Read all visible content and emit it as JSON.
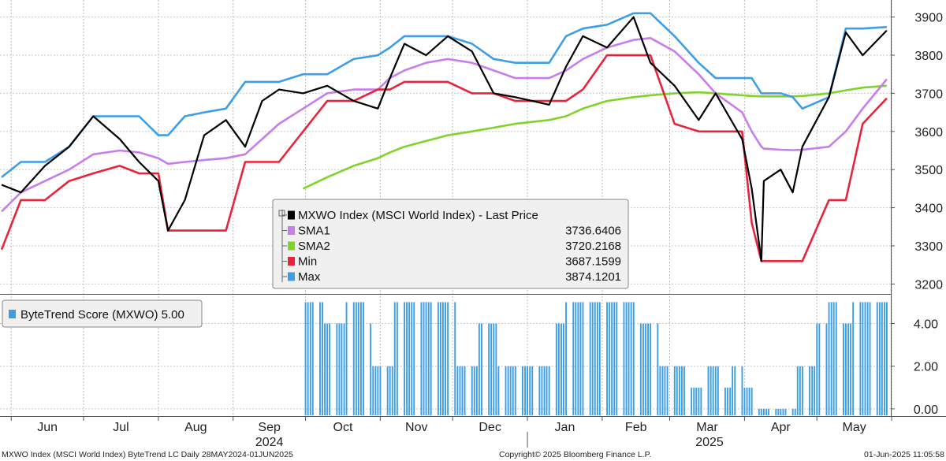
{
  "chart_data": [
    {
      "type": "line",
      "panel": "price",
      "x": [
        "2024-05-28",
        "2024-06-05",
        "2024-06-15",
        "2024-06-25",
        "2024-07-05",
        "2024-07-16",
        "2024-07-24",
        "2024-08-01",
        "2024-08-05",
        "2024-08-12",
        "2024-08-20",
        "2024-08-29",
        "2024-09-06",
        "2024-09-13",
        "2024-09-20",
        "2024-09-30",
        "2024-10-10",
        "2024-10-21",
        "2024-10-31",
        "2024-11-05",
        "2024-11-11",
        "2024-11-20",
        "2024-11-29",
        "2024-12-09",
        "2024-12-18",
        "2024-12-27",
        "2025-01-10",
        "2025-01-17",
        "2025-01-24",
        "2025-02-03",
        "2025-02-14",
        "2025-02-21",
        "2025-03-03",
        "2025-03-13",
        "2025-03-20",
        "2025-03-31",
        "2025-04-04",
        "2025-04-08",
        "2025-04-09",
        "2025-04-16",
        "2025-04-21",
        "2025-04-25",
        "2025-05-06",
        "2025-05-13",
        "2025-05-20",
        "2025-05-30"
      ],
      "series": [
        {
          "name": "MXWO Index (MSCI World Index) - Last Price",
          "values": [
            3460,
            3440,
            3510,
            3560,
            3640,
            3580,
            3520,
            3470,
            3340,
            3420,
            3590,
            3630,
            3560,
            3680,
            3710,
            3700,
            3720,
            3680,
            3660,
            3740,
            3830,
            3800,
            3850,
            3810,
            3700,
            3690,
            3670,
            3770,
            3850,
            3820,
            3900,
            3780,
            3720,
            3630,
            3700,
            3580,
            3450,
            3260,
            3470,
            3500,
            3440,
            3560,
            3690,
            3860,
            3800,
            3865
          ],
          "color": "#000000"
        },
        {
          "name": "SMA1",
          "values": [
            3390,
            3440,
            3470,
            3500,
            3540,
            3550,
            3545,
            3530,
            3515,
            3520,
            3525,
            3530,
            3540,
            3580,
            3620,
            3660,
            3700,
            3710,
            3710,
            3740,
            3760,
            3780,
            3790,
            3780,
            3760,
            3740,
            3740,
            3760,
            3790,
            3820,
            3840,
            3845,
            3810,
            3750,
            3700,
            3650,
            3600,
            3560,
            3555,
            3552,
            3551,
            3552,
            3560,
            3600,
            3660,
            3737
          ],
          "color": "#c77dec"
        },
        {
          "name": "SMA2",
          "values": [
            null,
            null,
            null,
            null,
            null,
            null,
            null,
            null,
            null,
            null,
            null,
            null,
            null,
            null,
            null,
            3450,
            3480,
            3510,
            3530,
            3545,
            3560,
            3575,
            3590,
            3600,
            3610,
            3620,
            3630,
            3640,
            3660,
            3680,
            3690,
            3695,
            3700,
            3703,
            3700,
            3695,
            3693,
            3692,
            3692,
            3692,
            3692,
            3693,
            3700,
            3708,
            3715,
            3720
          ],
          "color": "#80d22c"
        },
        {
          "name": "Min",
          "values": [
            3290,
            3420,
            3420,
            3470,
            3490,
            3510,
            3490,
            3490,
            3340,
            3340,
            3340,
            3340,
            3520,
            3520,
            3520,
            3600,
            3680,
            3680,
            3710,
            3710,
            3730,
            3730,
            3730,
            3700,
            3700,
            3680,
            3680,
            3680,
            3710,
            3800,
            3800,
            3800,
            3620,
            3600,
            3600,
            3600,
            3360,
            3260,
            3260,
            3260,
            3260,
            3260,
            3420,
            3420,
            3620,
            3687
          ],
          "color": "#e8243c"
        },
        {
          "name": "Max",
          "values": [
            3480,
            3520,
            3520,
            3560,
            3640,
            3640,
            3640,
            3590,
            3590,
            3640,
            3650,
            3660,
            3730,
            3730,
            3730,
            3750,
            3750,
            3790,
            3800,
            3820,
            3850,
            3850,
            3850,
            3830,
            3790,
            3780,
            3780,
            3850,
            3870,
            3880,
            3910,
            3910,
            3850,
            3780,
            3740,
            3740,
            3740,
            3700,
            3700,
            3700,
            3690,
            3660,
            3690,
            3870,
            3870,
            3874
          ],
          "color": "#3d9ee6"
        }
      ],
      "ylim": [
        3180,
        3920
      ],
      "yticks": [
        3200,
        3300,
        3400,
        3500,
        3600,
        3700,
        3800,
        3900
      ],
      "legend": {
        "placement": "bottom-center",
        "entries": [
          {
            "label": "MXWO Index (MSCI World Index) - Last Price",
            "value": ""
          },
          {
            "label": "SMA1",
            "value": "3736.6406"
          },
          {
            "label": "SMA2",
            "value": "3720.2168"
          },
          {
            "label": "Min",
            "value": "3687.1599"
          },
          {
            "label": "Max",
            "value": "3874.1201"
          }
        ]
      },
      "grid": true
    },
    {
      "type": "bar",
      "panel": "score",
      "name": "ByteTrend Score (MXWO) 5.00",
      "color": "#3d9ee6",
      "segments": [
        {
          "start": "2024-10-01",
          "end": "2024-10-08",
          "value": 5
        },
        {
          "start": "2024-10-09",
          "end": "2024-10-17",
          "value": 4
        },
        {
          "start": "2024-10-18",
          "end": "2024-10-25",
          "value": 5
        },
        {
          "start": "2024-10-26",
          "end": "2024-10-28",
          "value": 4
        },
        {
          "start": "2024-10-29",
          "end": "2024-11-06",
          "value": 2
        },
        {
          "start": "2024-11-07",
          "end": "2024-12-02",
          "value": 5
        },
        {
          "start": "2024-12-03",
          "end": "2024-12-11",
          "value": 2
        },
        {
          "start": "2024-12-12",
          "end": "2024-12-19",
          "value": 4
        },
        {
          "start": "2024-12-20",
          "end": "2025-01-10",
          "value": 2
        },
        {
          "start": "2025-01-13",
          "end": "2025-01-16",
          "value": 4
        },
        {
          "start": "2025-01-17",
          "end": "2025-02-14",
          "value": 5
        },
        {
          "start": "2025-02-17",
          "end": "2025-02-24",
          "value": 4
        },
        {
          "start": "2025-02-25",
          "end": "2025-03-07",
          "value": 2
        },
        {
          "start": "2025-03-10",
          "end": "2025-03-14",
          "value": 1
        },
        {
          "start": "2025-03-17",
          "end": "2025-03-21",
          "value": 2
        },
        {
          "start": "2025-03-24",
          "end": "2025-03-26",
          "value": 1
        },
        {
          "start": "2025-03-27",
          "end": "2025-03-31",
          "value": 2
        },
        {
          "start": "2025-04-01",
          "end": "2025-04-04",
          "value": 1
        },
        {
          "start": "2025-04-07",
          "end": "2025-04-22",
          "value": 0
        },
        {
          "start": "2025-04-23",
          "end": "2025-04-30",
          "value": 2
        },
        {
          "start": "2025-05-01",
          "end": "2025-05-05",
          "value": 4
        },
        {
          "start": "2025-05-06",
          "end": "2025-05-09",
          "value": 5
        },
        {
          "start": "2025-05-12",
          "end": "2025-05-15",
          "value": 4
        },
        {
          "start": "2025-05-16",
          "end": "2025-05-30",
          "value": 5
        }
      ],
      "ylim": [
        -0.3,
        5.2
      ],
      "yticks": [
        "0.00",
        "2.00",
        "4.00"
      ],
      "legend": {
        "label": "ByteTrend Score (MXWO) 5.00",
        "placement": "top-left"
      },
      "grid": true
    }
  ],
  "xaxis": {
    "months": [
      "Jun",
      "Jul",
      "Aug",
      "Sep",
      "Oct",
      "Nov",
      "Dec",
      "Jan",
      "Feb",
      "Mar",
      "Apr",
      "May"
    ],
    "years": [
      "2024",
      "2025"
    ]
  },
  "footer": {
    "left": "MXWO Index (MSCI World Index) ByteTrend LC  Daily 28MAY2024-01JUN2025",
    "center": "Copyright© 2025 Bloomberg Finance L.P.",
    "right": "01-Jun-2025 11:05:58"
  }
}
